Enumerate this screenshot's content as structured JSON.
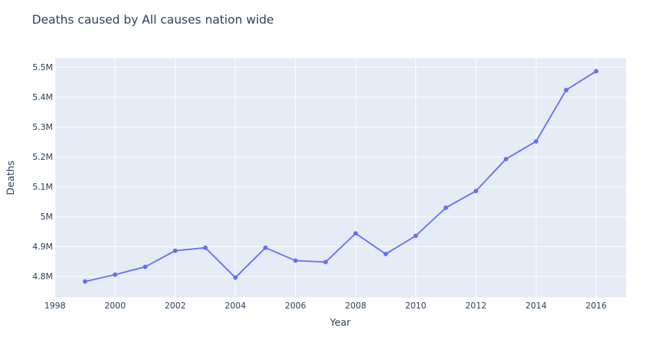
{
  "chart_data": {
    "type": "line",
    "title": "Deaths caused by All causes nation wide",
    "xlabel": "Year",
    "ylabel": "Deaths",
    "xlim": [
      1998,
      2017
    ],
    "ylim": [
      4.73,
      5.53
    ],
    "x_ticks": [
      1998,
      2000,
      2002,
      2004,
      2006,
      2008,
      2010,
      2012,
      2014,
      2016
    ],
    "y_ticks": [
      {
        "value": 4.8,
        "label": "4.8M"
      },
      {
        "value": 4.9,
        "label": "4.9M"
      },
      {
        "value": 5.0,
        "label": "5M"
      },
      {
        "value": 5.1,
        "label": "5.1M"
      },
      {
        "value": 5.2,
        "label": "5.2M"
      },
      {
        "value": 5.3,
        "label": "5.3M"
      },
      {
        "value": 5.4,
        "label": "5.4M"
      },
      {
        "value": 5.5,
        "label": "5.5M"
      }
    ],
    "grid": true,
    "colors": {
      "line": "#636efa",
      "plot_bg": "#e5ecf6",
      "grid": "#ffffff"
    },
    "series": [
      {
        "x": [
          1999,
          2000,
          2001,
          2002,
          2003,
          2004,
          2005,
          2006,
          2007,
          2008,
          2009,
          2010,
          2011,
          2012,
          2013,
          2014,
          2015,
          2016
        ],
        "values": [
          4.783,
          4.806,
          4.832,
          4.886,
          4.896,
          4.796,
          4.896,
          4.853,
          4.848,
          4.944,
          4.875,
          4.936,
          5.03,
          5.086,
          5.193,
          5.252,
          5.424,
          5.487
        ]
      }
    ]
  }
}
